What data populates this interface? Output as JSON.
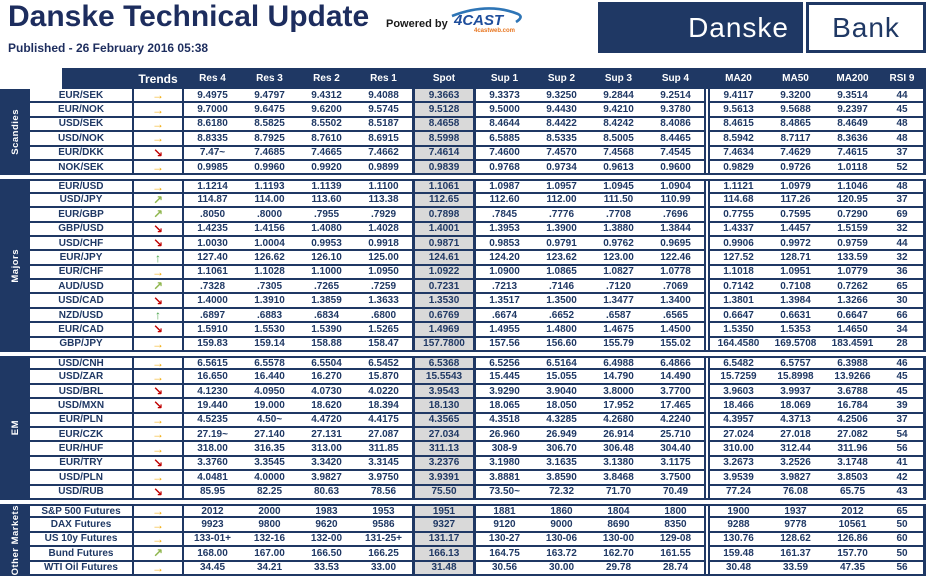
{
  "header": {
    "title": "Danske Technical Update",
    "powered_by": "Powered by",
    "brand_4cast": "4CAST",
    "brand_4cast_sub": "4castweb.com",
    "published": "Published - 26 February 2016 05:38",
    "logo": {
      "danske": "Danske",
      "bank": "Bank"
    }
  },
  "colors": {
    "navy": "#1f3864",
    "spot_background": "#d9d9d9",
    "brand_blue": "#2e75b6",
    "brand_orange": "#e87722",
    "trend_flat": "#f2a900",
    "trend_up": "#45a147",
    "trend_up_right": "#8db54b",
    "trend_down_right": "#c00000"
  },
  "table": {
    "columns": [
      "Trends",
      "Res 4",
      "Res 3",
      "Res 2",
      "Res 1",
      "Spot",
      "Sup 1",
      "Sup 2",
      "Sup 3",
      "Sup 4",
      "MA20",
      "MA50",
      "MA200",
      "RSI 9"
    ],
    "trend_arrows": {
      "flat": "→",
      "up": "↑",
      "up_right": "↗",
      "down_right": "↘"
    },
    "trend_colors": {
      "flat": "#f2a900",
      "up": "#45a147",
      "up_right": "#8db54b",
      "down_right": "#c00000"
    },
    "sections": [
      {
        "label": "Scandies",
        "rows": [
          {
            "name": "EUR/SEK",
            "trend": "flat",
            "values": [
              "9.4975",
              "9.4797",
              "9.4312",
              "9.4088",
              "9.3663",
              "9.3373",
              "9.3250",
              "9.2844",
              "9.2514",
              "9.4117",
              "9.3200",
              "9.3514",
              "44"
            ]
          },
          {
            "name": "EUR/NOK",
            "trend": "flat",
            "values": [
              "9.7000",
              "9.6475",
              "9.6200",
              "9.5745",
              "9.5128",
              "9.5000",
              "9.4430",
              "9.4210",
              "9.3780",
              "9.5613",
              "9.5688",
              "9.2397",
              "45"
            ]
          },
          {
            "name": "USD/SEK",
            "trend": "flat",
            "values": [
              "8.6180",
              "8.5825",
              "8.5502",
              "8.5187",
              "8.4658",
              "8.4644",
              "8.4422",
              "8.4242",
              "8.4086",
              "8.4615",
              "8.4865",
              "8.4649",
              "48"
            ]
          },
          {
            "name": "USD/NOK",
            "trend": "flat",
            "values": [
              "8.8335",
              "8.7925",
              "8.7610",
              "8.6915",
              "8.5998",
              "6.5885",
              "8.5335",
              "8.5005",
              "8.4465",
              "8.5942",
              "8.7117",
              "8.3636",
              "48"
            ]
          },
          {
            "name": "EUR/DKK",
            "trend": "down_right",
            "values": [
              "7.47~",
              "7.4685",
              "7.4665",
              "7.4662",
              "7.4614",
              "7.4600",
              "7.4570",
              "7.4568",
              "7.4545",
              "7.4634",
              "7.4629",
              "7.4615",
              "37"
            ]
          },
          {
            "name": "NOK/SEK",
            "trend": "flat",
            "values": [
              "0.9985",
              "0.9960",
              "0.9920",
              "0.9899",
              "0.9839",
              "0.9768",
              "0.9734",
              "0.9613",
              "0.9600",
              "0.9829",
              "0.9726",
              "1.0118",
              "52"
            ]
          }
        ]
      },
      {
        "label": "Majors",
        "rows": [
          {
            "name": "EUR/USD",
            "trend": "flat",
            "values": [
              "1.1214",
              "1.1193",
              "1.1139",
              "1.1100",
              "1.1061",
              "1.0987",
              "1.0957",
              "1.0945",
              "1.0904",
              "1.1121",
              "1.0979",
              "1.1046",
              "48"
            ]
          },
          {
            "name": "USD/JPY",
            "trend": "up_right",
            "values": [
              "114.87",
              "114.00",
              "113.60",
              "113.38",
              "112.65",
              "112.60",
              "112.00",
              "111.50",
              "110.99",
              "114.68",
              "117.26",
              "120.95",
              "37"
            ]
          },
          {
            "name": "EUR/GBP",
            "trend": "up_right",
            "values": [
              ".8050",
              ".8000",
              ".7955",
              ".7929",
              "0.7898",
              ".7845",
              ".7776",
              ".7708",
              ".7696",
              "0.7755",
              "0.7595",
              "0.7290",
              "69"
            ]
          },
          {
            "name": "GBP/USD",
            "trend": "down_right",
            "values": [
              "1.4235",
              "1.4156",
              "1.4080",
              "1.4028",
              "1.4001",
              "1.3953",
              "1.3900",
              "1.3880",
              "1.3844",
              "1.4337",
              "1.4457",
              "1.5159",
              "32"
            ]
          },
          {
            "name": "USD/CHF",
            "trend": "down_right",
            "values": [
              "1.0030",
              "1.0004",
              "0.9953",
              "0.9918",
              "0.9871",
              "0.9853",
              "0.9791",
              "0.9762",
              "0.9695",
              "0.9906",
              "0.9972",
              "0.9759",
              "44"
            ]
          },
          {
            "name": "EUR/JPY",
            "trend": "up",
            "values": [
              "127.40",
              "126.62",
              "126.10",
              "125.00",
              "124.61",
              "124.20",
              "123.62",
              "123.00",
              "122.46",
              "127.52",
              "128.71",
              "133.59",
              "32"
            ]
          },
          {
            "name": "EUR/CHF",
            "trend": "flat",
            "values": [
              "1.1061",
              "1.1028",
              "1.1000",
              "1.0950",
              "1.0922",
              "1.0900",
              "1.0865",
              "1.0827",
              "1.0778",
              "1.1018",
              "1.0951",
              "1.0779",
              "36"
            ]
          },
          {
            "name": "AUD/USD",
            "trend": "up_right",
            "values": [
              ".7328",
              ".7305",
              ".7265",
              ".7259",
              "0.7231",
              ".7213",
              ".7146",
              ".7120",
              ".7069",
              "0.7142",
              "0.7108",
              "0.7262",
              "65"
            ]
          },
          {
            "name": "USD/CAD",
            "trend": "down_right",
            "values": [
              "1.4000",
              "1.3910",
              "1.3859",
              "1.3633",
              "1.3530",
              "1.3517",
              "1.3500",
              "1.3477",
              "1.3400",
              "1.3801",
              "1.3984",
              "1.3266",
              "30"
            ]
          },
          {
            "name": "NZD/USD",
            "trend": "up",
            "values": [
              ".6897",
              ".6883",
              ".6834",
              ".6800",
              "0.6769",
              ".6674",
              ".6652",
              ".6587",
              ".6565",
              "0.6647",
              "0.6631",
              "0.6647",
              "66"
            ]
          },
          {
            "name": "EUR/CAD",
            "trend": "down_right",
            "values": [
              "1.5910",
              "1.5530",
              "1.5390",
              "1.5265",
              "1.4969",
              "1.4955",
              "1.4800",
              "1.4675",
              "1.4500",
              "1.5350",
              "1.5353",
              "1.4650",
              "34"
            ]
          },
          {
            "name": "GBP/JPY",
            "trend": "flat",
            "values": [
              "159.83",
              "159.14",
              "158.88",
              "158.47",
              "157.7800",
              "157.56",
              "156.60",
              "155.79",
              "155.02",
              "164.4580",
              "169.5708",
              "183.4591",
              "28"
            ]
          }
        ]
      },
      {
        "label": "EM",
        "rows": [
          {
            "name": "USD/CNH",
            "trend": "flat",
            "values": [
              "6.5615",
              "6.5578",
              "6.5504",
              "6.5452",
              "6.5368",
              "6.5256",
              "6.5164",
              "6.4988",
              "6.4866",
              "6.5482",
              "6.5757",
              "6.3988",
              "46"
            ]
          },
          {
            "name": "USD/ZAR",
            "trend": "flat",
            "values": [
              "16.650",
              "16.440",
              "16.270",
              "15.870",
              "15.5543",
              "15.445",
              "15.055",
              "14.790",
              "14.490",
              "15.7259",
              "15.8998",
              "13.9266",
              "45"
            ]
          },
          {
            "name": "USD/BRL",
            "trend": "down_right",
            "values": [
              "4.1230",
              "4.0950",
              "4.0730",
              "4.0220",
              "3.9543",
              "3.9290",
              "3.9040",
              "3.8000",
              "3.7700",
              "3.9603",
              "3.9937",
              "3.6788",
              "45"
            ]
          },
          {
            "name": "USD/MXN",
            "trend": "down_right",
            "values": [
              "19.440",
              "19.000",
              "18.620",
              "18.394",
              "18.130",
              "18.065",
              "18.050",
              "17.952",
              "17.465",
              "18.466",
              "18.069",
              "16.784",
              "39"
            ]
          },
          {
            "name": "EUR/PLN",
            "trend": "flat",
            "values": [
              "4.5235",
              "4.50~",
              "4.4720",
              "4.4175",
              "4.3565",
              "4.3518",
              "4.3285",
              "4.2680",
              "4.2240",
              "4.3957",
              "4.3713",
              "4.2506",
              "37"
            ]
          },
          {
            "name": "EUR/CZK",
            "trend": "flat",
            "values": [
              "27.19~",
              "27.140",
              "27.131",
              "27.087",
              "27.034",
              "26.960",
              "26.949",
              "26.914",
              "25.710",
              "27.024",
              "27.018",
              "27.082",
              "54"
            ]
          },
          {
            "name": "EUR/HUF",
            "trend": "flat",
            "values": [
              "318.00",
              "316.35",
              "313.00",
              "311.85",
              "311.13",
              "308-9",
              "306.70",
              "306.48",
              "304.40",
              "310.00",
              "312.44",
              "311.96",
              "56"
            ]
          },
          {
            "name": "EUR/TRY",
            "trend": "down_right",
            "values": [
              "3.3760",
              "3.3545",
              "3.3420",
              "3.3145",
              "3.2376",
              "3.1980",
              "3.1635",
              "3.1380",
              "3.1175",
              "3.2673",
              "3.2526",
              "3.1748",
              "41"
            ]
          },
          {
            "name": "USD/PLN",
            "trend": "flat",
            "values": [
              "4.0481",
              "4.0000",
              "3.9827",
              "3.9750",
              "3.9391",
              "3.8881",
              "3.8590",
              "3.8468",
              "3.7500",
              "3.9539",
              "3.9827",
              "3.8503",
              "42"
            ]
          },
          {
            "name": "USD/RUB",
            "trend": "down_right",
            "values": [
              "85.95",
              "82.25",
              "80.63",
              "78.56",
              "75.50",
              "73.50~",
              "72.32",
              "71.70",
              "70.49",
              "77.24",
              "76.08",
              "65.75",
              "43"
            ]
          }
        ]
      },
      {
        "label": "Other Markets",
        "rows": [
          {
            "name": "S&P 500 Futures",
            "trend": "flat",
            "values": [
              "2012",
              "2000",
              "1983",
              "1953",
              "1951",
              "1881",
              "1860",
              "1804",
              "1800",
              "1900",
              "1937",
              "2012",
              "65"
            ]
          },
          {
            "name": "DAX Futures",
            "trend": "flat",
            "values": [
              "9923",
              "9800",
              "9620",
              "9586",
              "9327",
              "9120",
              "9000",
              "8690",
              "8350",
              "9288",
              "9778",
              "10561",
              "50"
            ]
          },
          {
            "name": "US 10y Futures",
            "trend": "flat",
            "values": [
              "133-01+",
              "132-16",
              "132-00",
              "131-25+",
              "131.17",
              "130-27",
              "130-06",
              "130-00",
              "129-08",
              "130.76",
              "128.62",
              "126.86",
              "60"
            ]
          },
          {
            "name": "Bund Futures",
            "trend": "up_right",
            "values": [
              "168.00",
              "167.00",
              "166.50",
              "166.25",
              "166.13",
              "164.75",
              "163.72",
              "162.70",
              "161.55",
              "159.48",
              "161.37",
              "157.70",
              "50"
            ]
          },
          {
            "name": "WTI Oil Futures",
            "trend": "flat",
            "values": [
              "34.45",
              "34.21",
              "33.53",
              "33.00",
              "31.48",
              "30.56",
              "30.00",
              "29.78",
              "28.74",
              "30.48",
              "33.59",
              "47.35",
              "56"
            ]
          }
        ]
      }
    ]
  }
}
